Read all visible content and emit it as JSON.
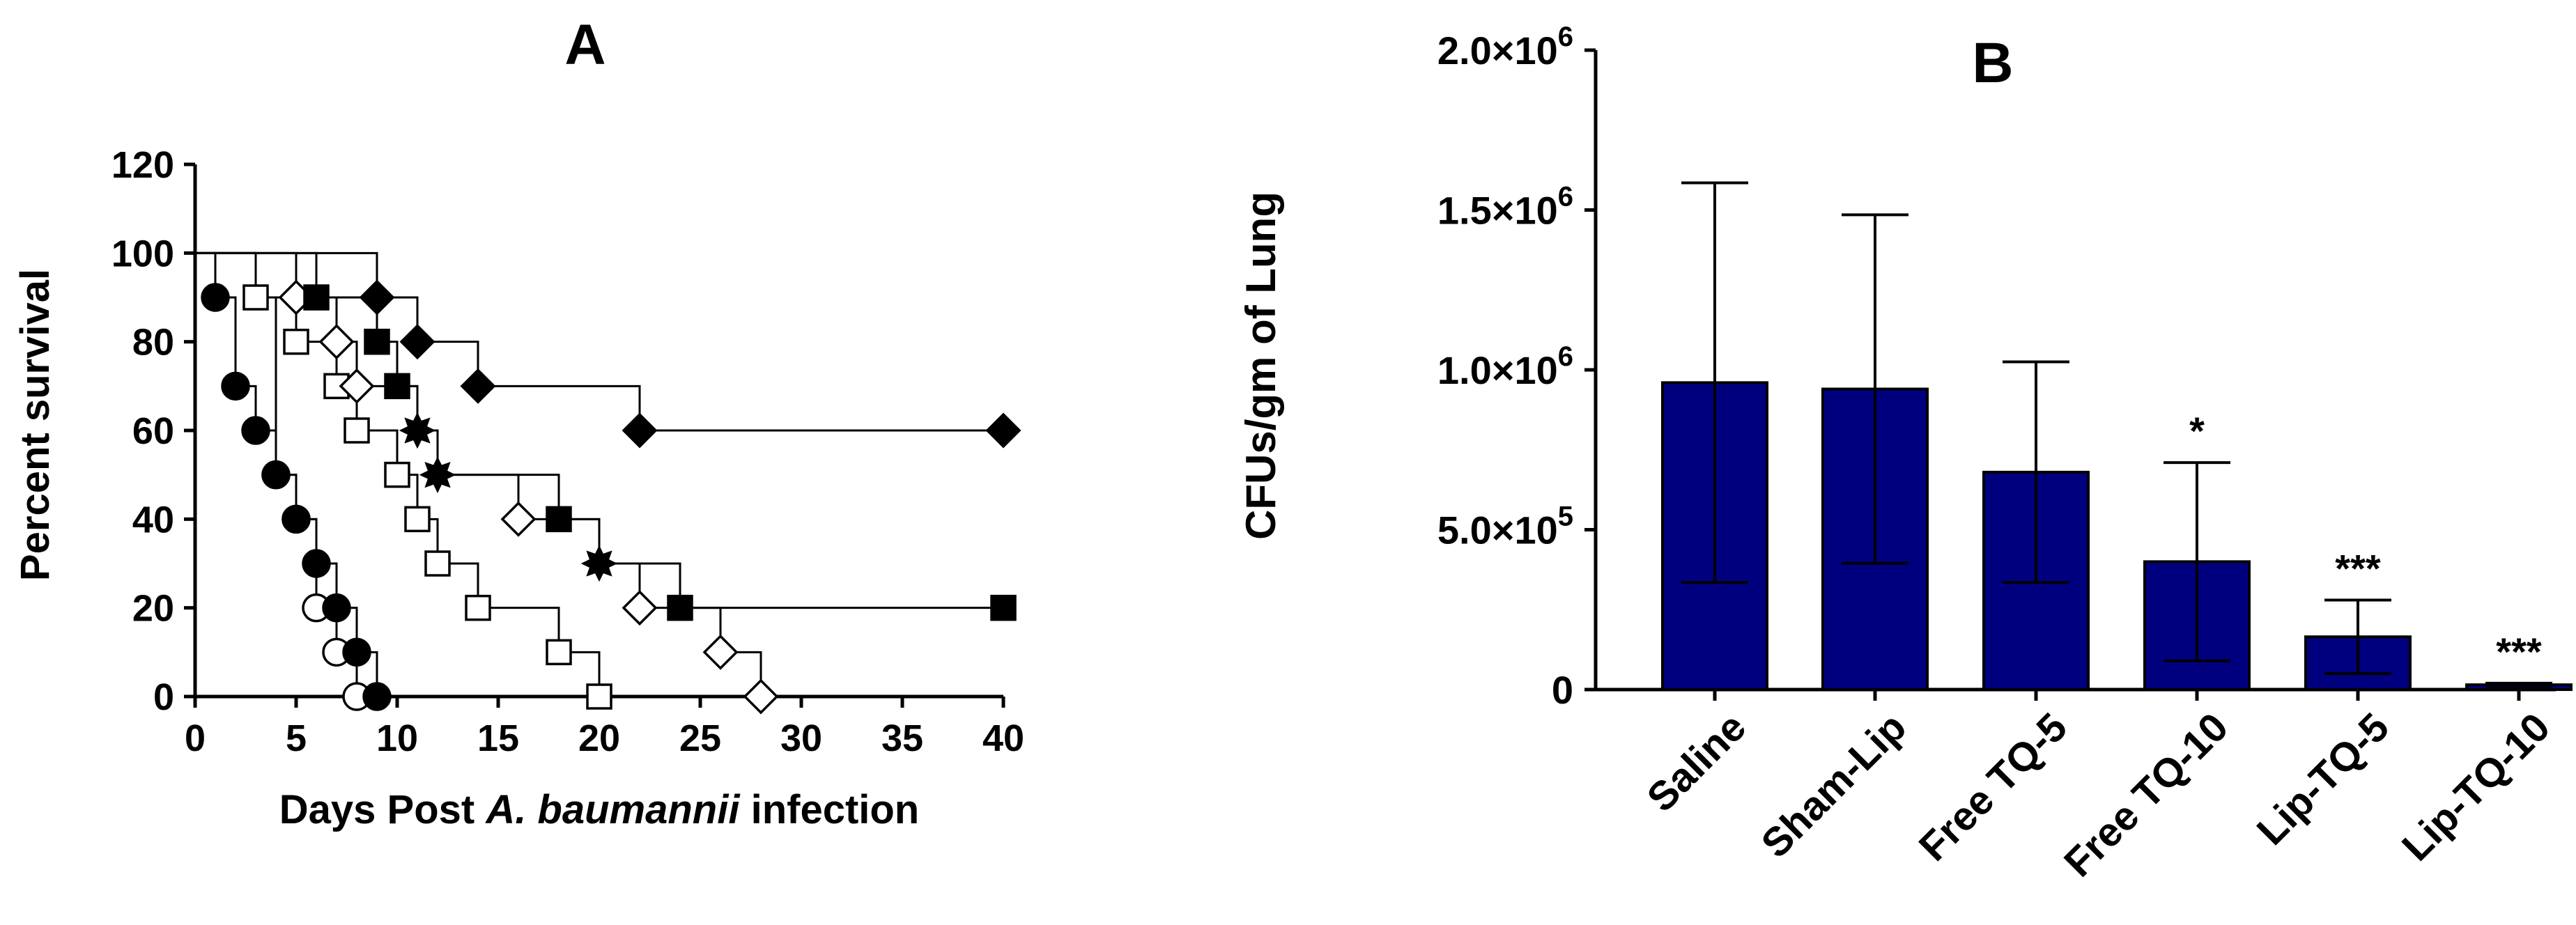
{
  "chart_data": [
    {
      "panel": "A",
      "type": "line",
      "subtype": "kaplan-meier step",
      "title": "A",
      "xlabel": {
        "prefix": "Days Post ",
        "italic": "A. baumannii",
        "suffix": " infection"
      },
      "ylabel": "Percent survival",
      "xlim": [
        0,
        40
      ],
      "ylim": [
        0,
        120
      ],
      "xticks": [
        0,
        5,
        10,
        15,
        20,
        25,
        30,
        35,
        40
      ],
      "yticks": [
        0,
        20,
        40,
        60,
        80,
        100,
        120
      ],
      "series": [
        {
          "name": "open-circle",
          "marker": "circle",
          "filled": false,
          "steps": [
            [
              0,
              100
            ],
            [
              3,
              90
            ],
            [
              4,
              50
            ],
            [
              5,
              40
            ],
            [
              6,
              20
            ],
            [
              7,
              10
            ],
            [
              8,
              0
            ]
          ],
          "markers": [
            [
              4,
              50
            ],
            [
              5,
              40
            ],
            [
              6,
              20
            ],
            [
              7,
              10
            ],
            [
              8,
              0
            ]
          ]
        },
        {
          "name": "filled-circle",
          "marker": "circle",
          "filled": true,
          "steps": [
            [
              0,
              100
            ],
            [
              1,
              90
            ],
            [
              2,
              70
            ],
            [
              3,
              60
            ],
            [
              4,
              50
            ],
            [
              5,
              40
            ],
            [
              6,
              30
            ],
            [
              7,
              20
            ],
            [
              8,
              10
            ],
            [
              9,
              0
            ]
          ],
          "markers": [
            [
              1,
              90
            ],
            [
              2,
              70
            ],
            [
              3,
              60
            ],
            [
              4,
              50
            ],
            [
              5,
              40
            ],
            [
              6,
              30
            ],
            [
              7,
              20
            ],
            [
              8,
              10
            ],
            [
              9,
              0
            ]
          ]
        },
        {
          "name": "open-square",
          "marker": "square",
          "filled": false,
          "steps": [
            [
              0,
              100
            ],
            [
              3,
              90
            ],
            [
              5,
              80
            ],
            [
              7,
              70
            ],
            [
              8,
              60
            ],
            [
              10,
              50
            ],
            [
              11,
              40
            ],
            [
              12,
              30
            ],
            [
              14,
              20
            ],
            [
              18,
              10
            ],
            [
              20,
              0
            ]
          ],
          "markers": [
            [
              3,
              90
            ],
            [
              5,
              80
            ],
            [
              7,
              70
            ],
            [
              8,
              60
            ],
            [
              10,
              50
            ],
            [
              11,
              40
            ],
            [
              12,
              30
            ],
            [
              14,
              20
            ],
            [
              18,
              10
            ],
            [
              20,
              0
            ]
          ]
        },
        {
          "name": "open-diamond",
          "marker": "diamond",
          "filled": false,
          "steps": [
            [
              0,
              100
            ],
            [
              5,
              90
            ],
            [
              7,
              80
            ],
            [
              8,
              70
            ],
            [
              11,
              60
            ],
            [
              12,
              50
            ],
            [
              16,
              40
            ],
            [
              20,
              30
            ],
            [
              22,
              20
            ],
            [
              26,
              10
            ],
            [
              28,
              0
            ]
          ],
          "markers": [
            [
              5,
              90
            ],
            [
              7,
              80
            ],
            [
              8,
              70
            ],
            [
              16,
              40
            ],
            [
              22,
              20
            ],
            [
              26,
              10
            ],
            [
              28,
              0
            ]
          ]
        },
        {
          "name": "filled-square",
          "marker": "square",
          "filled": true,
          "steps": [
            [
              0,
              100
            ],
            [
              6,
              90
            ],
            [
              9,
              80
            ],
            [
              10,
              70
            ],
            [
              11,
              60
            ],
            [
              12,
              50
            ],
            [
              18,
              40
            ],
            [
              20,
              30
            ],
            [
              24,
              20
            ],
            [
              40,
              20
            ]
          ],
          "markers": [
            [
              6,
              90
            ],
            [
              9,
              80
            ],
            [
              10,
              70
            ],
            [
              18,
              40
            ],
            [
              24,
              20
            ],
            [
              40,
              20
            ]
          ]
        },
        {
          "name": "filled-diamond",
          "marker": "diamond",
          "filled": true,
          "steps": [
            [
              0,
              100
            ],
            [
              9,
              90
            ],
            [
              11,
              80
            ],
            [
              14,
              70
            ],
            [
              22,
              60
            ],
            [
              40,
              60
            ]
          ],
          "markers": [
            [
              9,
              90
            ],
            [
              11,
              80
            ],
            [
              14,
              70
            ],
            [
              22,
              60
            ],
            [
              40,
              60
            ]
          ]
        },
        {
          "name": "star-markers",
          "marker": "star",
          "filled": true,
          "markers": [
            [
              11,
              60
            ],
            [
              12,
              50
            ],
            [
              20,
              30
            ]
          ]
        }
      ]
    },
    {
      "panel": "B",
      "type": "bar",
      "title": "B",
      "ylabel": "CFUs/gm of Lung",
      "ylim": [
        0,
        2000000
      ],
      "yticks": [
        {
          "value": 0,
          "label": "0",
          "exp": ""
        },
        {
          "value": 500000,
          "label": "5.0×10",
          "exp": "5"
        },
        {
          "value": 1000000,
          "label": "1.0×10",
          "exp": "6"
        },
        {
          "value": 1500000,
          "label": "1.5×10",
          "exp": "6"
        },
        {
          "value": 2000000,
          "label": "2.0×10",
          "exp": "6"
        }
      ],
      "categories": [
        "Saline",
        "Sham-Lip",
        "Free TQ-5",
        "Free TQ-10",
        "Lip-TQ-5",
        "Lip-TQ-10"
      ],
      "values": [
        960000,
        940000,
        680000,
        400000,
        165000,
        15000
      ],
      "errors": [
        625000,
        545000,
        345000,
        310000,
        115000,
        5000
      ],
      "annotations": [
        "",
        "",
        "",
        "*",
        "***",
        "***"
      ],
      "bar_color": "#00007f"
    }
  ]
}
